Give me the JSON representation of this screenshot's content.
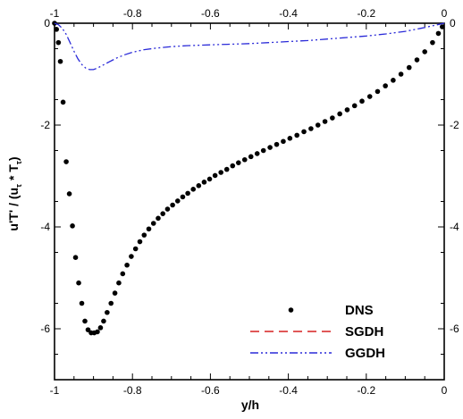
{
  "chart_data": {
    "type": "scatter",
    "xlabel": "y/h",
    "ylabel": "u'T' / (u_τ * T_τ)",
    "ylabel_parts": {
      "main": "u'T' / (u",
      "sub1": "τ",
      "mid": " * T",
      "sub2": "τ",
      "end": ")"
    },
    "xlim": [
      -1,
      0
    ],
    "ylim": [
      -7,
      0
    ],
    "x_ticks": [
      -1,
      -0.8,
      -0.6,
      -0.4,
      -0.2,
      0
    ],
    "x_tick_labels": [
      "-1",
      "-0.8",
      "-0.6",
      "-0.4",
      "-0.2",
      "0"
    ],
    "y_ticks": [
      0,
      -2,
      -4,
      -6
    ],
    "y_tick_labels": [
      "0",
      "-2",
      "-4",
      "-6"
    ],
    "grid": false,
    "legend_position": "bottom-right",
    "series": [
      {
        "name": "DNS",
        "style": "dots",
        "color": "#000000",
        "x": [
          -1.0,
          -0.995,
          -0.99,
          -0.985,
          -0.978,
          -0.97,
          -0.962,
          -0.954,
          -0.946,
          -0.938,
          -0.93,
          -0.922,
          -0.914,
          -0.906,
          -0.898,
          -0.89,
          -0.882,
          -0.874,
          -0.865,
          -0.855,
          -0.845,
          -0.835,
          -0.825,
          -0.814,
          -0.803,
          -0.792,
          -0.781,
          -0.77,
          -0.758,
          -0.746,
          -0.734,
          -0.722,
          -0.71,
          -0.697,
          -0.684,
          -0.671,
          -0.658,
          -0.644,
          -0.63,
          -0.616,
          -0.602,
          -0.588,
          -0.573,
          -0.558,
          -0.543,
          -0.528,
          -0.512,
          -0.496,
          -0.48,
          -0.464,
          -0.447,
          -0.43,
          -0.413,
          -0.396,
          -0.378,
          -0.36,
          -0.342,
          -0.324,
          -0.306,
          -0.287,
          -0.268,
          -0.249,
          -0.23,
          -0.211,
          -0.191,
          -0.171,
          -0.151,
          -0.131,
          -0.111,
          -0.09,
          -0.07,
          -0.05,
          -0.03,
          -0.015,
          -0.005
        ],
        "y": [
          0.0,
          -0.12,
          -0.38,
          -0.75,
          -1.55,
          -2.72,
          -3.35,
          -3.98,
          -4.6,
          -5.1,
          -5.5,
          -5.85,
          -6.02,
          -6.08,
          -6.08,
          -6.06,
          -5.98,
          -5.85,
          -5.68,
          -5.5,
          -5.3,
          -5.1,
          -4.92,
          -4.75,
          -4.58,
          -4.43,
          -4.29,
          -4.16,
          -4.04,
          -3.93,
          -3.83,
          -3.74,
          -3.65,
          -3.57,
          -3.49,
          -3.41,
          -3.34,
          -3.26,
          -3.19,
          -3.12,
          -3.06,
          -2.99,
          -2.93,
          -2.87,
          -2.8,
          -2.74,
          -2.68,
          -2.62,
          -2.56,
          -2.5,
          -2.44,
          -2.38,
          -2.32,
          -2.26,
          -2.2,
          -2.13,
          -2.07,
          -2.0,
          -1.93,
          -1.86,
          -1.78,
          -1.7,
          -1.62,
          -1.53,
          -1.44,
          -1.34,
          -1.23,
          -1.12,
          -1.0,
          -0.87,
          -0.72,
          -0.56,
          -0.38,
          -0.2,
          -0.07
        ]
      },
      {
        "name": "SGDH",
        "style": "dashed",
        "color": "#d62020",
        "x": [],
        "y": []
      },
      {
        "name": "GGDH",
        "style": "dash-dot-dot",
        "color": "#2a2ad8",
        "x": [
          -1.0,
          -0.99,
          -0.98,
          -0.97,
          -0.96,
          -0.95,
          -0.94,
          -0.93,
          -0.92,
          -0.91,
          -0.9,
          -0.89,
          -0.88,
          -0.86,
          -0.84,
          -0.82,
          -0.8,
          -0.77,
          -0.74,
          -0.7,
          -0.66,
          -0.62,
          -0.58,
          -0.54,
          -0.5,
          -0.45,
          -0.4,
          -0.35,
          -0.3,
          -0.25,
          -0.2,
          -0.15,
          -0.1,
          -0.06,
          -0.03,
          0.0
        ],
        "y": [
          0.0,
          -0.03,
          -0.1,
          -0.22,
          -0.38,
          -0.55,
          -0.7,
          -0.81,
          -0.88,
          -0.91,
          -0.91,
          -0.88,
          -0.84,
          -0.76,
          -0.68,
          -0.62,
          -0.57,
          -0.52,
          -0.49,
          -0.46,
          -0.44,
          -0.43,
          -0.42,
          -0.41,
          -0.4,
          -0.38,
          -0.36,
          -0.34,
          -0.31,
          -0.28,
          -0.25,
          -0.21,
          -0.16,
          -0.1,
          -0.05,
          0.0
        ]
      }
    ]
  }
}
